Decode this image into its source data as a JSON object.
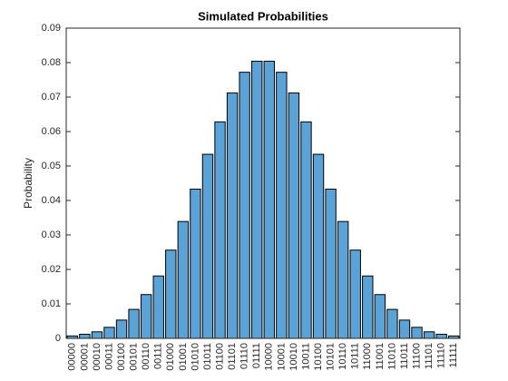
{
  "chart_data": {
    "type": "bar",
    "title": "Simulated Probabilities",
    "y_label": "Probability",
    "categories": [
      "00000",
      "00001",
      "00010",
      "00011",
      "00100",
      "00101",
      "00110",
      "00111",
      "01000",
      "01001",
      "01010",
      "01011",
      "01100",
      "01101",
      "01110",
      "01111",
      "10000",
      "10001",
      "10010",
      "10011",
      "10100",
      "10101",
      "10110",
      "10111",
      "11000",
      "11001",
      "11010",
      "11011",
      "11100",
      "11101",
      "11110",
      "11111"
    ],
    "values": [
      0.0007,
      0.0012,
      0.0019,
      0.0032,
      0.0053,
      0.0084,
      0.0127,
      0.0181,
      0.0256,
      0.0339,
      0.0433,
      0.0534,
      0.0628,
      0.0712,
      0.0772,
      0.0804,
      0.0804,
      0.0772,
      0.0712,
      0.0628,
      0.0534,
      0.0433,
      0.0339,
      0.0256,
      0.0181,
      0.0127,
      0.0084,
      0.0053,
      0.0032,
      0.0019,
      0.0012,
      0.0007
    ],
    "color": "#5ba3d6",
    "ylim": [
      0,
      0.09
    ],
    "yticks": [
      0,
      0.01,
      0.02,
      0.03,
      0.04,
      0.05,
      0.06,
      0.07,
      0.08,
      0.09
    ],
    "grid": false
  }
}
